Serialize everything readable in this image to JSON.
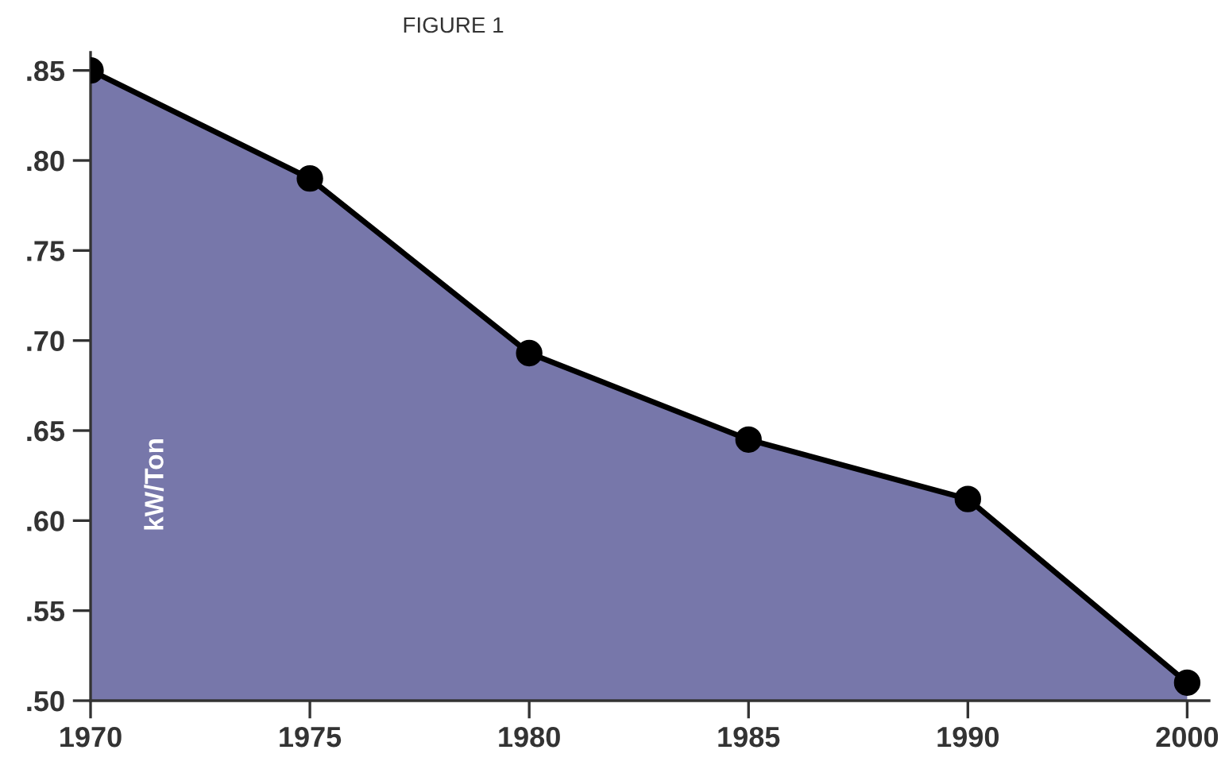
{
  "chart_data": {
    "type": "area",
    "title": "FIGURE 1",
    "ylabel": "kW/Ton",
    "categories": [
      "1970",
      "1975",
      "1980",
      "1985",
      "1990",
      "2000"
    ],
    "series": [
      {
        "color": "#4a4a8e",
        "values": [
          0.85,
          0.79,
          0.693,
          0.645,
          0.612,
          0.51
        ]
      }
    ],
    "ylim": [
      0.5,
      0.86
    ],
    "yticks": [
      {
        "value": 0.5,
        "label": ".50"
      },
      {
        "value": 0.55,
        "label": ".55"
      },
      {
        "value": 0.6,
        "label": ".60"
      },
      {
        "value": 0.65,
        "label": ".65"
      },
      {
        "value": 0.7,
        "label": ".70"
      },
      {
        "value": 0.75,
        "label": ".75"
      },
      {
        "value": 0.8,
        "label": ".80"
      },
      {
        "value": 0.85,
        "label": ".85"
      }
    ],
    "marker": "circle",
    "grid": false,
    "legend": false
  }
}
